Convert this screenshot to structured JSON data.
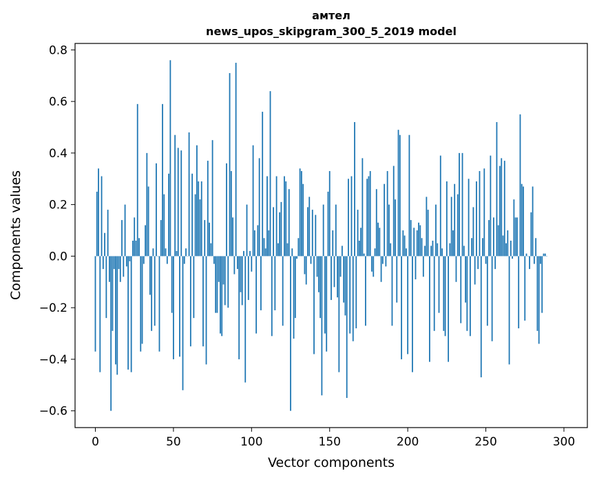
{
  "chart_data": {
    "type": "bar",
    "title": "амтел",
    "subtitle": "news_upos_skipgram_300_5_2019 model",
    "xlabel": "Vector components",
    "ylabel": "Components values",
    "xlim": [
      -13,
      315
    ],
    "ylim": [
      -0.665,
      0.825
    ],
    "xticks": [
      0,
      50,
      100,
      150,
      200,
      250,
      300
    ],
    "yticks": [
      -0.6,
      -0.4,
      -0.2,
      0.0,
      0.2,
      0.4,
      0.6,
      0.8
    ],
    "ytick_labels": [
      "−0.6",
      "−0.4",
      "−0.2",
      "0.0",
      "0.2",
      "0.4",
      "0.6",
      "0.8"
    ],
    "bar_color": "#1f77b4",
    "grid": false,
    "values": [
      -0.37,
      0.25,
      0.34,
      -0.45,
      0.31,
      -0.05,
      0.09,
      -0.24,
      0.18,
      -0.1,
      -0.6,
      -0.29,
      -0.05,
      -0.42,
      -0.46,
      -0.05,
      -0.1,
      0.14,
      -0.08,
      0.2,
      -0.04,
      -0.44,
      -0.02,
      -0.45,
      0.06,
      0.15,
      0.06,
      0.59,
      0.07,
      -0.37,
      -0.34,
      -0.03,
      0.12,
      0.4,
      0.27,
      -0.15,
      -0.29,
      0.03,
      -0.27,
      0.36,
      0.0,
      -0.37,
      0.14,
      0.59,
      0.24,
      0.03,
      -0.03,
      0.32,
      0.76,
      -0.22,
      -0.4,
      0.47,
      0.02,
      0.42,
      -0.39,
      0.41,
      -0.52,
      -0.03,
      0.03,
      0.0,
      0.48,
      -0.35,
      0.32,
      -0.24,
      0.24,
      0.43,
      0.29,
      0.22,
      0.29,
      -0.35,
      0.14,
      -0.42,
      0.37,
      0.13,
      0.05,
      0.45,
      -0.03,
      -0.22,
      -0.22,
      -0.1,
      -0.3,
      -0.31,
      -0.11,
      -0.19,
      0.36,
      -0.2,
      0.71,
      0.33,
      0.15,
      -0.07,
      0.75,
      -0.05,
      -0.4,
      -0.14,
      -0.19,
      0.02,
      -0.49,
      0.2,
      -0.17,
      0.02,
      -0.06,
      0.43,
      0.1,
      -0.3,
      0.12,
      0.38,
      -0.21,
      0.56,
      0.07,
      0.03,
      0.31,
      0.1,
      0.64,
      -0.31,
      0.19,
      -0.21,
      0.31,
      0.05,
      0.17,
      0.21,
      -0.27,
      0.31,
      0.29,
      0.05,
      0.26,
      -0.6,
      0.03,
      -0.32,
      -0.24,
      -0.01,
      0.07,
      0.34,
      0.33,
      0.28,
      -0.07,
      -0.11,
      0.19,
      0.23,
      -0.03,
      0.18,
      -0.38,
      0.16,
      -0.08,
      -0.14,
      -0.24,
      -0.54,
      0.2,
      -0.3,
      -0.37,
      0.25,
      0.33,
      -0.17,
      0.1,
      -0.12,
      0.2,
      -0.16,
      -0.45,
      -0.08,
      0.04,
      -0.18,
      -0.23,
      -0.55,
      0.3,
      -0.3,
      0.31,
      -0.33,
      0.52,
      -0.28,
      0.18,
      0.06,
      0.11,
      0.38,
      0.01,
      -0.27,
      0.3,
      0.31,
      0.33,
      -0.06,
      -0.08,
      0.03,
      0.26,
      0.13,
      0.11,
      -0.1,
      -0.03,
      0.28,
      -0.04,
      0.33,
      0.2,
      0.05,
      -0.27,
      0.35,
      0.22,
      -0.18,
      0.49,
      0.47,
      -0.4,
      0.1,
      0.08,
      0.03,
      -0.38,
      0.47,
      0.14,
      -0.45,
      0.11,
      -0.09,
      0.1,
      0.13,
      0.12,
      0.07,
      -0.08,
      0.04,
      0.23,
      0.18,
      -0.41,
      0.04,
      0.06,
      -0.29,
      0.2,
      0.05,
      -0.22,
      0.39,
      0.03,
      -0.29,
      -0.31,
      0.29,
      -0.41,
      0.05,
      0.23,
      0.1,
      0.28,
      -0.1,
      0.24,
      0.4,
      -0.26,
      0.4,
      0.04,
      -0.18,
      -0.29,
      0.3,
      -0.31,
      0.07,
      0.19,
      -0.11,
      0.29,
      -0.05,
      0.33,
      -0.47,
      0.07,
      0.34,
      -0.03,
      -0.27,
      0.14,
      0.39,
      -0.33,
      0.15,
      -0.05,
      0.52,
      0.12,
      0.35,
      0.38,
      0.08,
      0.37,
      0.05,
      0.1,
      -0.42,
      0.06,
      -0.01,
      0.22,
      0.15,
      0.15,
      -0.28,
      0.55,
      0.28,
      0.27,
      -0.25,
      0.01,
      0.0,
      -0.05,
      0.17,
      0.27,
      -0.03,
      0.07,
      -0.29,
      -0.34,
      -0.03,
      -0.22,
      0.01,
      0.01,
      0.0
    ]
  }
}
